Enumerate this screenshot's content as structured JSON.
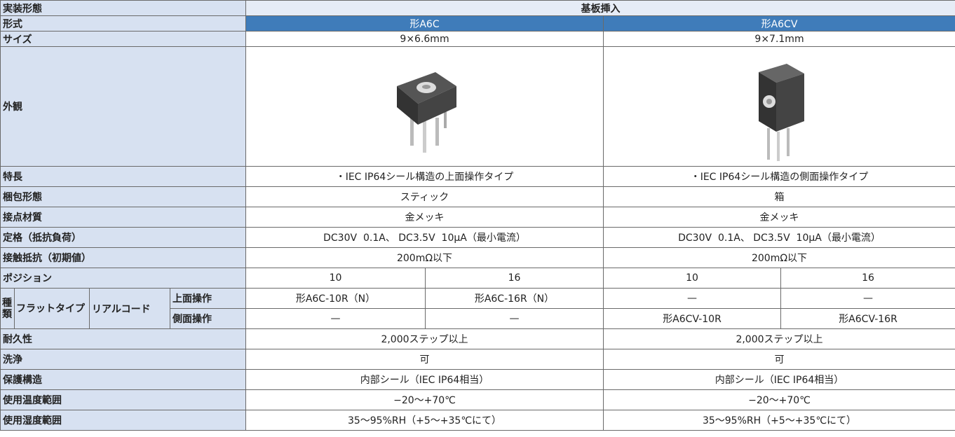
{
  "table": {
    "rows": [
      [
        "実装形態",
        "基板挿入"
      ],
      [
        "形式",
        "形A6C",
        "形A6CV"
      ],
      [
        "サイズ",
        "9×6.6mm",
        "9×7.1mm"
      ],
      [
        "外観"
      ],
      [
        "特長",
        "・IEC IP64シール構造の上面操作タイプ",
        "・IEC IP64シール構造の側面操作タイプ"
      ],
      [
        "梱包形態",
        "スティック",
        "箱"
      ],
      [
        "接点材質",
        "金メッキ",
        "金メッキ"
      ],
      [
        "定格（抵抗負荷）",
        "DC30V  0.1A、 DC3.5V  10μA（最小電流）",
        "DC30V  0.1A、 DC3.5V  10μA（最小電流）"
      ],
      [
        "接触抵抗（初期値）",
        "200mΩ以下",
        "200mΩ以下"
      ],
      [
        "ポジション",
        10,
        16,
        10,
        16
      ],
      [
        "種類",
        "フラットタイプ",
        "リアルコード",
        "上面操作",
        "形A6C-10R（N）",
        "形A6C-16R（N）",
        "—",
        "—"
      ],
      [
        "側面操作",
        "—",
        "—",
        "形A6CV-10R",
        "形A6CV-16R"
      ],
      [
        "耐久性",
        "2,000ステップ以上",
        "2,000ステップ以上"
      ],
      [
        "洗浄",
        "可",
        "可"
      ],
      [
        "保護構造",
        "内部シール（IEC IP64相当）",
        "内部シール（IEC IP64相当）"
      ],
      [
        "使用温度範囲",
        "−20～+70℃",
        "−20～+70℃"
      ],
      [
        "使用湿度範囲",
        "35～95%RH（+5～+35℃にて）",
        "35～95%RH（+5～+35℃にて）"
      ]
    ]
  }
}
